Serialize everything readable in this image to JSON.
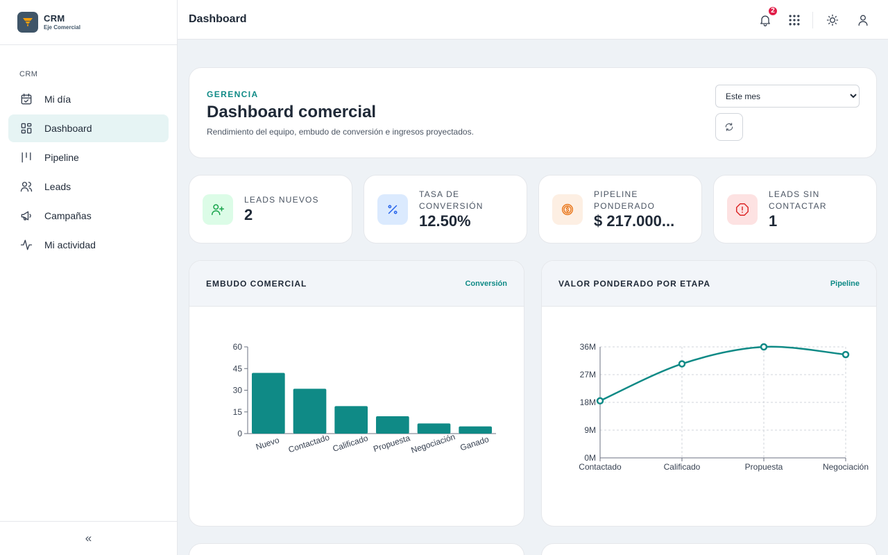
{
  "brand": {
    "name": "CRM",
    "subtitle": "Eje Comercial"
  },
  "sidebar": {
    "section": "CRM",
    "items": [
      {
        "label": "Mi día",
        "icon": "calendar-check-icon"
      },
      {
        "label": "Dashboard",
        "icon": "dashboard-grid-icon",
        "active": true
      },
      {
        "label": "Pipeline",
        "icon": "pipeline-columns-icon"
      },
      {
        "label": "Leads",
        "icon": "users-icon"
      },
      {
        "label": "Campañas",
        "icon": "megaphone-icon"
      },
      {
        "label": "Mi actividad",
        "icon": "activity-pulse-icon"
      }
    ],
    "collapse_label": "«"
  },
  "header": {
    "title": "Dashboard",
    "notifications_count": "2"
  },
  "hero": {
    "eyebrow": "GERENCIA",
    "title": "Dashboard comercial",
    "description": "Rendimiento del equipo, embudo de conversión e ingresos proyectados.",
    "period_selected": "Este mes"
  },
  "kpis": [
    {
      "label": "LEADS NUEVOS",
      "value": "2",
      "icon": "user-plus-icon",
      "color": "#16a34a",
      "bg": "#dcfce7"
    },
    {
      "label": "TASA DE CONVERSIÓN",
      "value": "12.50%",
      "icon": "percent-icon",
      "color": "#2563eb",
      "bg": "#dbeafe"
    },
    {
      "label": "PIPELINE PONDERADO",
      "value": "$ 217.000...",
      "icon": "coin-dollar-icon",
      "color": "#ea7a20",
      "bg": "#fdefe3"
    },
    {
      "label": "LEADS SIN CONTACTAR",
      "value": "1",
      "icon": "alert-octagon-icon",
      "color": "#dc2626",
      "bg": "#fde2e2"
    }
  ],
  "charts": {
    "funnel": {
      "title": "EMBUDO COMERCIAL",
      "link": "Conversión"
    },
    "weighted": {
      "title": "VALOR PONDERADO POR ETAPA",
      "link": "Pipeline"
    }
  },
  "colors": {
    "accent": "#0f8a86",
    "badge": "#e11d48"
  },
  "chart_data": [
    {
      "type": "bar",
      "categories": [
        "Nuevo",
        "Contactado",
        "Calificado",
        "Propuesta",
        "Negociación",
        "Ganado"
      ],
      "values": [
        42,
        31,
        19,
        12,
        7,
        5
      ],
      "yticks": [
        "0",
        "15",
        "30",
        "45",
        "60"
      ],
      "ylim": [
        0,
        60
      ],
      "grid": false,
      "color": "#0f8a86"
    },
    {
      "type": "line",
      "categories": [
        "Contactado",
        "Calificado",
        "Propuesta",
        "Negociación"
      ],
      "values": [
        18.5,
        30.5,
        36,
        33.5
      ],
      "yticks": [
        "0M",
        "9M",
        "18M",
        "27M",
        "36M"
      ],
      "ylim": [
        0,
        36
      ],
      "grid": true,
      "color": "#0f8a86"
    }
  ]
}
